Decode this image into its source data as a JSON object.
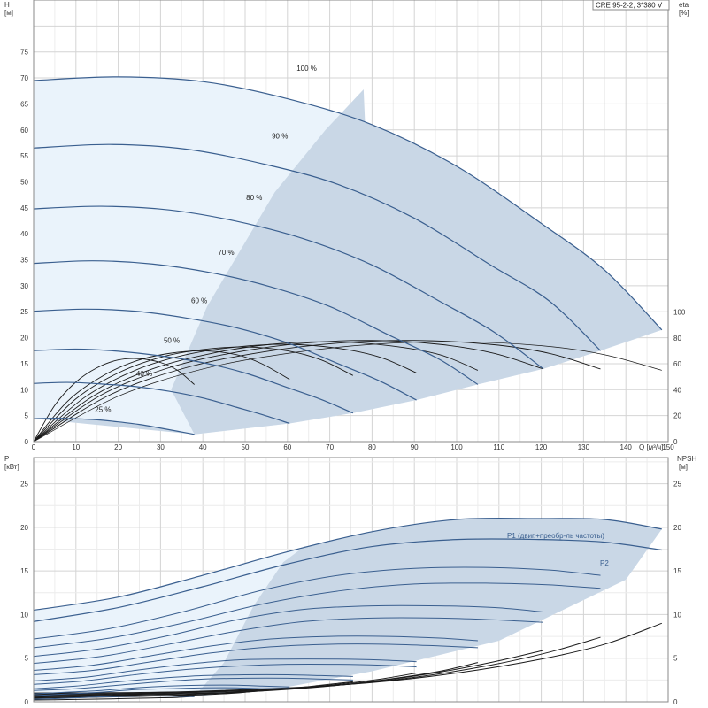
{
  "chart_data": [
    {
      "type": "line",
      "title": "CRE 95-2-2, 3*380 V",
      "xlabel": "Q [м³/ч]",
      "ylabel": "H [м]",
      "y2label": "eta [%]",
      "xlim": [
        0,
        150
      ],
      "ylim": [
        0,
        85
      ],
      "y2lim": [
        0,
        100
      ],
      "xticks": [
        0,
        10,
        20,
        30,
        40,
        50,
        60,
        70,
        80,
        90,
        100,
        110,
        120,
        130,
        140,
        150
      ],
      "yticks": [
        0,
        5,
        10,
        15,
        20,
        25,
        30,
        35,
        40,
        45,
        50,
        55,
        60,
        65,
        70,
        75
      ],
      "y2ticks": [
        0,
        20,
        40,
        60,
        80,
        100
      ],
      "grid": true,
      "colors": {
        "head_curve": "#3a5f8f",
        "operating_area": "#c9d7e6",
        "light_area": "#eaf3fb",
        "eta_curve": "#1a1a1a"
      },
      "series": [
        {
          "name": "100 %",
          "x": [
            0,
            20,
            40,
            60,
            80,
            100,
            120,
            135,
            148.5
          ],
          "y": [
            69.5,
            70.2,
            69.3,
            66,
            61,
            53,
            42,
            33,
            21.5
          ]
        },
        {
          "name": "90 %",
          "x": [
            0,
            18,
            36,
            54,
            72,
            90,
            108,
            122,
            134
          ],
          "y": [
            56.5,
            57.2,
            56.3,
            53.5,
            49.5,
            43,
            34,
            27,
            17.5
          ]
        },
        {
          "name": "80 %",
          "x": [
            0,
            16,
            32,
            48,
            64,
            80,
            96,
            109,
            120.5
          ],
          "y": [
            44.8,
            45.3,
            44.6,
            42.4,
            39,
            34,
            27,
            21,
            14
          ]
        },
        {
          "name": "70 %",
          "x": [
            0,
            14,
            28,
            42,
            56,
            70,
            84,
            96,
            105
          ],
          "y": [
            34.3,
            34.8,
            34.2,
            32.5,
            29.8,
            26,
            20.5,
            15.8,
            11
          ]
        },
        {
          "name": "60 %",
          "x": [
            0,
            12,
            24,
            36,
            48,
            60,
            72,
            82,
            90.5
          ],
          "y": [
            25.1,
            25.5,
            25.1,
            23.8,
            21.9,
            19,
            15,
            11.6,
            8
          ]
        },
        {
          "name": "50 %",
          "x": [
            0,
            10,
            20,
            30,
            40,
            50,
            60,
            68,
            75.5
          ],
          "y": [
            17.5,
            17.8,
            17.4,
            16.5,
            15.2,
            13.2,
            10.4,
            8.1,
            5.5
          ]
        },
        {
          "name": "40 %",
          "x": [
            0,
            8,
            16,
            24,
            32,
            40,
            48,
            54,
            60.5
          ],
          "y": [
            11.2,
            11.4,
            11.1,
            10.6,
            9.7,
            8.4,
            6.6,
            5.2,
            3.5
          ]
        },
        {
          "name": "25 %",
          "x": [
            0,
            5,
            10,
            15,
            20,
            25,
            30,
            34,
            38
          ],
          "y": [
            4.4,
            4.5,
            4.4,
            4.2,
            3.8,
            3.3,
            2.6,
            2,
            1.4
          ]
        }
      ],
      "eta_series": [
        {
          "x": [
            0,
            20,
            40,
            60,
            80,
            100,
            120,
            135,
            148.5
          ],
          "y": [
            0,
            35,
            56,
            68,
            75,
            77,
            74,
            67,
            55
          ]
        },
        {
          "x": [
            0,
            18,
            36,
            54,
            72,
            90,
            108,
            122,
            134
          ],
          "y": [
            0,
            36,
            57,
            69,
            76,
            78,
            75,
            68,
            56
          ]
        },
        {
          "x": [
            0,
            16,
            32,
            48,
            64,
            80,
            96,
            109,
            120.5
          ],
          "y": [
            0,
            36,
            57,
            69,
            76,
            78,
            75,
            68,
            56
          ]
        },
        {
          "x": [
            0,
            14,
            28,
            42,
            56,
            70,
            84,
            96,
            105
          ],
          "y": [
            0,
            35,
            56,
            68,
            75,
            77,
            74,
            67,
            55
          ]
        },
        {
          "x": [
            0,
            12,
            24,
            36,
            48,
            60,
            72,
            82,
            90.5
          ],
          "y": [
            0,
            34,
            55,
            67,
            73,
            75,
            72,
            65,
            53
          ]
        },
        {
          "x": [
            0,
            10,
            20,
            30,
            40,
            50,
            60,
            68,
            75.5
          ],
          "y": [
            0,
            33,
            53,
            65,
            71,
            73,
            70,
            63,
            51
          ]
        },
        {
          "x": [
            0,
            8,
            16,
            24,
            32,
            40,
            48,
            54,
            60.5
          ],
          "y": [
            0,
            31,
            50,
            62,
            68,
            70,
            67,
            60,
            48
          ]
        },
        {
          "x": [
            0,
            5,
            10,
            15,
            20,
            25,
            30,
            34,
            38
          ],
          "y": [
            0,
            28,
            46,
            57,
            63,
            64,
            61,
            55,
            44
          ]
        }
      ]
    },
    {
      "type": "line",
      "xlabel": "",
      "ylabel": "P [кВт]",
      "y2label": "NPSH [м]",
      "xlim": [
        0,
        150
      ],
      "ylim": [
        0,
        28
      ],
      "y2lim": [
        0,
        28
      ],
      "yticks": [
        0,
        5,
        10,
        15,
        20,
        25
      ],
      "y2ticks": [
        0,
        5,
        10,
        15,
        20,
        25
      ],
      "grid": true,
      "series": [
        {
          "name": "P1 (двиг.+преобр-ль частоты)",
          "x": [
            0,
            20,
            40,
            60,
            80,
            100,
            120,
            135,
            148.5
          ],
          "y": [
            10.5,
            12,
            14.5,
            17.2,
            19.5,
            20.9,
            21.0,
            20.9,
            19.8
          ]
        },
        {
          "name": "P2",
          "x": [
            0,
            20,
            40,
            60,
            80,
            100,
            120,
            135,
            148.5
          ],
          "y": [
            9.2,
            10.8,
            13.2,
            15.8,
            17.8,
            18.6,
            18.6,
            18.3,
            17.4
          ]
        },
        {
          "name": "",
          "x": [
            0,
            18,
            36,
            54,
            72,
            90,
            108,
            122,
            134
          ],
          "y": [
            7.2,
            8.4,
            10.4,
            12.8,
            14.5,
            15.3,
            15.4,
            15.1,
            14.5
          ]
        },
        {
          "name": "",
          "x": [
            0,
            18,
            36,
            54,
            72,
            90,
            108,
            122,
            134
          ],
          "y": [
            6.2,
            7.3,
            9.1,
            11.2,
            12.7,
            13.5,
            13.6,
            13.4,
            13.0
          ]
        },
        {
          "name": "",
          "x": [
            0,
            16,
            32,
            48,
            64,
            80,
            96,
            109,
            120.5
          ],
          "y": [
            5.2,
            6.1,
            7.6,
            9.4,
            10.6,
            11.0,
            11.0,
            10.8,
            10.3
          ]
        },
        {
          "name": "",
          "x": [
            0,
            16,
            32,
            48,
            64,
            80,
            96,
            109,
            120.5
          ],
          "y": [
            4.4,
            5.2,
            6.6,
            8.1,
            9.2,
            9.6,
            9.6,
            9.4,
            9.1
          ]
        },
        {
          "name": "",
          "x": [
            0,
            14,
            28,
            42,
            56,
            70,
            84,
            96,
            105
          ],
          "y": [
            3.6,
            4.2,
            5.3,
            6.4,
            7.2,
            7.5,
            7.5,
            7.3,
            7.0
          ]
        },
        {
          "name": "",
          "x": [
            0,
            14,
            28,
            42,
            56,
            70,
            84,
            96,
            105
          ],
          "y": [
            3.1,
            3.6,
            4.6,
            5.6,
            6.3,
            6.6,
            6.6,
            6.4,
            6.2
          ]
        },
        {
          "name": "",
          "x": [
            0,
            12,
            24,
            36,
            48,
            60,
            72,
            82,
            90.5
          ],
          "y": [
            2.4,
            2.8,
            3.6,
            4.3,
            4.8,
            4.9,
            4.9,
            4.8,
            4.6
          ]
        },
        {
          "name": "",
          "x": [
            0,
            12,
            24,
            36,
            48,
            60,
            72,
            82,
            90.5
          ],
          "y": [
            2.0,
            2.4,
            3.1,
            3.7,
            4.1,
            4.3,
            4.3,
            4.2,
            4.0
          ]
        },
        {
          "name": "",
          "x": [
            0,
            10,
            20,
            30,
            40,
            50,
            60,
            68,
            75.5
          ],
          "y": [
            1.5,
            1.8,
            2.3,
            2.7,
            3.0,
            3.1,
            3.1,
            3.0,
            2.9
          ]
        },
        {
          "name": "",
          "x": [
            0,
            10,
            20,
            30,
            40,
            50,
            60,
            68,
            75.5
          ],
          "y": [
            1.3,
            1.5,
            1.9,
            2.3,
            2.6,
            2.7,
            2.7,
            2.6,
            2.5
          ]
        },
        {
          "name": "",
          "x": [
            0,
            8,
            16,
            24,
            32,
            40,
            48,
            54,
            60.5
          ],
          "y": [
            0.9,
            1.1,
            1.3,
            1.6,
            1.8,
            1.9,
            1.9,
            1.8,
            1.7
          ]
        },
        {
          "name": "",
          "x": [
            0,
            8,
            16,
            24,
            32,
            40,
            48,
            54,
            60.5
          ],
          "y": [
            0.7,
            0.9,
            1.1,
            1.4,
            1.5,
            1.6,
            1.6,
            1.5,
            1.5
          ]
        },
        {
          "name": "",
          "x": [
            0,
            5,
            10,
            15,
            20,
            25,
            30,
            34,
            38
          ],
          "y": [
            0.3,
            0.35,
            0.45,
            0.55,
            0.6,
            0.65,
            0.65,
            0.62,
            0.6
          ]
        }
      ],
      "npsh_series": [
        {
          "x": [
            0,
            30,
            60,
            80,
            100,
            120,
            135,
            148.5
          ],
          "y": [
            1.0,
            1.1,
            1.6,
            2.2,
            3.3,
            4.9,
            6.6,
            9.0
          ]
        },
        {
          "x": [
            0,
            27,
            54,
            72,
            90,
            108,
            122,
            134
          ],
          "y": [
            0.9,
            1.0,
            1.4,
            1.9,
            2.8,
            4.2,
            5.7,
            7.4
          ]
        },
        {
          "x": [
            0,
            24,
            48,
            64,
            80,
            96,
            109,
            120.5
          ],
          "y": [
            0.8,
            0.9,
            1.2,
            1.6,
            2.3,
            3.4,
            4.6,
            5.9
          ]
        },
        {
          "x": [
            0,
            21,
            42,
            56,
            70,
            84,
            96,
            105
          ],
          "y": [
            0.7,
            0.8,
            1.0,
            1.3,
            1.8,
            2.6,
            3.5,
            4.5
          ]
        },
        {
          "x": [
            0,
            18,
            36,
            48,
            60,
            72,
            82,
            90.5
          ],
          "y": [
            0.6,
            0.7,
            0.9,
            1.1,
            1.5,
            2.0,
            2.6,
            3.3
          ]
        },
        {
          "x": [
            0,
            15,
            30,
            40,
            50,
            60,
            68,
            75.5
          ],
          "y": [
            0.5,
            0.6,
            0.7,
            0.9,
            1.1,
            1.5,
            1.9,
            2.3
          ]
        },
        {
          "x": [
            0,
            12,
            24,
            32,
            40,
            48,
            54,
            60.5
          ],
          "y": [
            0.4,
            0.5,
            0.6,
            0.7,
            0.8,
            1.0,
            1.3,
            1.5
          ]
        },
        {
          "x": [
            0,
            8,
            15,
            20,
            25,
            30,
            34,
            38
          ],
          "y": [
            0.2,
            0.25,
            0.3,
            0.35,
            0.4,
            0.45,
            0.5,
            0.6
          ]
        }
      ]
    }
  ]
}
